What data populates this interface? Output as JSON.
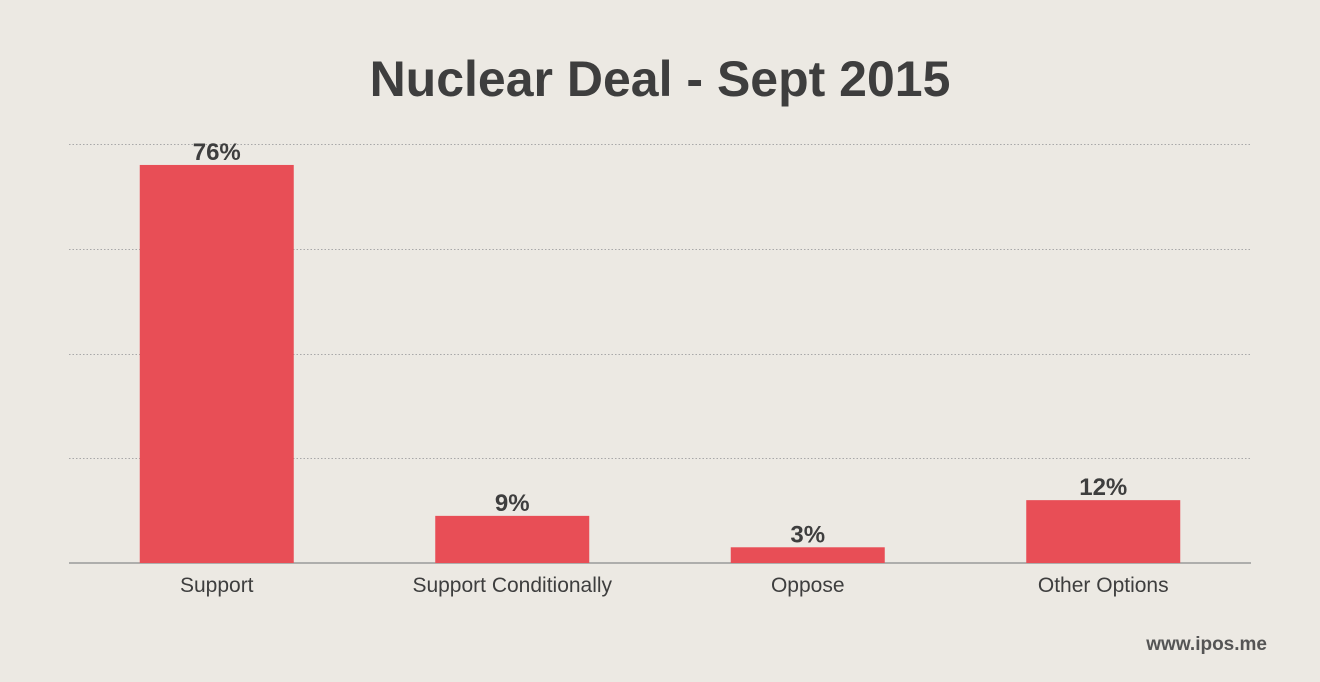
{
  "chart_data": {
    "type": "bar",
    "title": "Nuclear Deal - Sept 2015",
    "categories": [
      "Support",
      "Support Conditionally",
      "Oppose",
      "Other Options"
    ],
    "values": [
      76,
      9,
      3,
      12
    ],
    "value_labels": [
      "76%",
      "9%",
      "3%",
      "12%"
    ],
    "xlabel": "",
    "ylabel": "",
    "ylim": [
      0,
      80
    ],
    "grid": true,
    "bar_color": "#e84e56"
  },
  "watermark": "www.ipos.me"
}
